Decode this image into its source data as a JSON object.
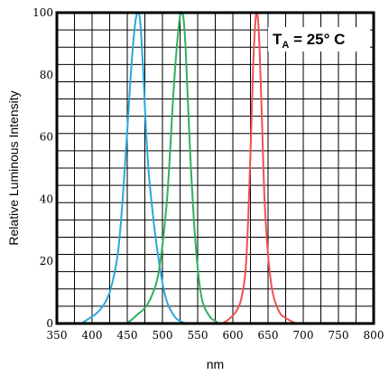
{
  "chart_data": {
    "type": "line",
    "xlabel": "nm",
    "ylabel": "Relative Luminous Intensity",
    "xlim": [
      350,
      800
    ],
    "ylim": [
      0,
      100
    ],
    "x_ticks": [
      350,
      400,
      450,
      500,
      550,
      600,
      650,
      700,
      750,
      800
    ],
    "y_ticks": [
      0,
      20,
      40,
      60,
      80,
      100
    ],
    "x_tick_labels": [
      "350",
      "400",
      "450",
      "500",
      "550",
      "600",
      "650",
      "700",
      "750",
      "800"
    ],
    "y_tick_labels": [
      "0",
      "20",
      "40",
      "60",
      "80",
      "100"
    ],
    "grid": true,
    "annotation": {
      "main": "T",
      "subscript": "A",
      "rest": " = 25° C",
      "position": "top-right"
    },
    "series": [
      {
        "color": "#2aa7dd",
        "x": [
          385,
          395,
          405,
          415,
          425,
          435,
          440,
          445,
          450,
          455,
          460,
          463,
          466,
          468,
          470,
          473,
          476,
          480,
          485,
          490,
          495,
          500,
          505,
          510,
          515,
          520,
          525,
          530,
          535
        ],
        "y": [
          0,
          1.5,
          3,
          5.5,
          10,
          20,
          30,
          45,
          62,
          80,
          94,
          99,
          100,
          98,
          92,
          80,
          65,
          50,
          38,
          28,
          20,
          13,
          8,
          5,
          3,
          1.5,
          0.8,
          0.3,
          0
        ]
      },
      {
        "color": "#2fb060",
        "x": [
          447,
          455,
          465,
          475,
          485,
          495,
          505,
          510,
          515,
          520,
          525,
          527,
          530,
          533,
          536,
          540,
          545,
          550,
          555,
          560,
          565,
          570,
          575,
          580
        ],
        "y": [
          0,
          1,
          3,
          5,
          9,
          17,
          36,
          52,
          72,
          88,
          99,
          100,
          98,
          88,
          72,
          52,
          32,
          18,
          9,
          5,
          3,
          1.5,
          0.8,
          0
        ]
      },
      {
        "color": "#f05050",
        "x": [
          585,
          595,
          605,
          612,
          618,
          622,
          626,
          629,
          632,
          634,
          636,
          638,
          641,
          645,
          650,
          655,
          660,
          668,
          677,
          685,
          690
        ],
        "y": [
          0,
          1.5,
          4,
          8,
          17,
          35,
          62,
          84,
          97,
          100,
          97,
          88,
          68,
          40,
          22,
          12,
          7,
          3,
          1.5,
          0.5,
          0
        ]
      }
    ]
  }
}
